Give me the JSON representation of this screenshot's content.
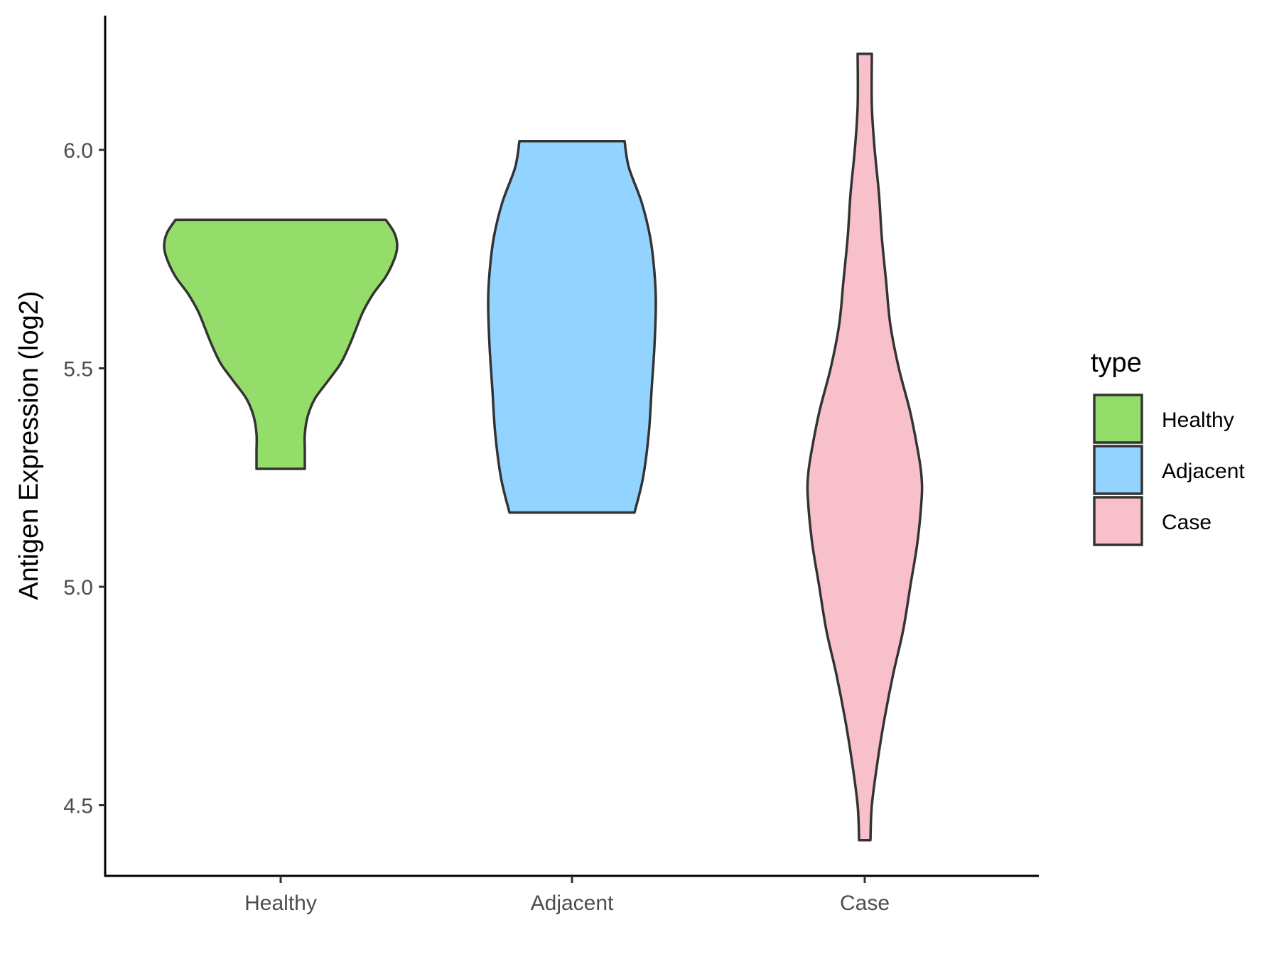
{
  "chart_data": {
    "type": "violin",
    "title": "",
    "xlabel": "",
    "ylabel": "Antigen Expression (log2)",
    "ylim": [
      4.35,
      6.32
    ],
    "yticks": [
      "4.5",
      "5.0",
      "5.5",
      "6.0"
    ],
    "categories": [
      "Healthy",
      "Adjacent",
      "Case"
    ],
    "grid": false,
    "legend": {
      "title": "type",
      "position": "right",
      "entries": [
        "Healthy",
        "Adjacent",
        "Case"
      ]
    },
    "series": [
      {
        "category": "Healthy",
        "color": "#94DD6A",
        "min": 5.27,
        "max": 5.84,
        "density_profile": [
          {
            "y": 5.27,
            "w": 0.17
          },
          {
            "y": 5.31,
            "w": 0.17
          },
          {
            "y": 5.35,
            "w": 0.17
          },
          {
            "y": 5.39,
            "w": 0.19
          },
          {
            "y": 5.43,
            "w": 0.24
          },
          {
            "y": 5.47,
            "w": 0.33
          },
          {
            "y": 5.51,
            "w": 0.42
          },
          {
            "y": 5.55,
            "w": 0.48
          },
          {
            "y": 5.59,
            "w": 0.53
          },
          {
            "y": 5.63,
            "w": 0.58
          },
          {
            "y": 5.67,
            "w": 0.65
          },
          {
            "y": 5.71,
            "w": 0.74
          },
          {
            "y": 5.75,
            "w": 0.8
          },
          {
            "y": 5.78,
            "w": 0.82
          },
          {
            "y": 5.81,
            "w": 0.8
          },
          {
            "y": 5.84,
            "w": 0.74
          }
        ]
      },
      {
        "category": "Adjacent",
        "color": "#93D3FF",
        "min": 5.17,
        "max": 6.02,
        "density_profile": [
          {
            "y": 5.17,
            "w": 0.44
          },
          {
            "y": 5.25,
            "w": 0.5
          },
          {
            "y": 5.35,
            "w": 0.54
          },
          {
            "y": 5.45,
            "w": 0.56
          },
          {
            "y": 5.55,
            "w": 0.58
          },
          {
            "y": 5.65,
            "w": 0.59
          },
          {
            "y": 5.72,
            "w": 0.58
          },
          {
            "y": 5.8,
            "w": 0.55
          },
          {
            "y": 5.88,
            "w": 0.49
          },
          {
            "y": 5.96,
            "w": 0.4
          },
          {
            "y": 6.02,
            "w": 0.37
          }
        ]
      },
      {
        "category": "Case",
        "color": "#F7C0CB",
        "min": 4.42,
        "max": 6.22,
        "density_profile": [
          {
            "y": 4.42,
            "w": 0.04
          },
          {
            "y": 4.5,
            "w": 0.05
          },
          {
            "y": 4.6,
            "w": 0.09
          },
          {
            "y": 4.7,
            "w": 0.14
          },
          {
            "y": 4.8,
            "w": 0.2
          },
          {
            "y": 4.9,
            "w": 0.27
          },
          {
            "y": 5.0,
            "w": 0.32
          },
          {
            "y": 5.1,
            "w": 0.37
          },
          {
            "y": 5.2,
            "w": 0.4
          },
          {
            "y": 5.25,
            "w": 0.4
          },
          {
            "y": 5.3,
            "w": 0.38
          },
          {
            "y": 5.4,
            "w": 0.32
          },
          {
            "y": 5.5,
            "w": 0.24
          },
          {
            "y": 5.6,
            "w": 0.18
          },
          {
            "y": 5.7,
            "w": 0.15
          },
          {
            "y": 5.8,
            "w": 0.12
          },
          {
            "y": 5.9,
            "w": 0.1
          },
          {
            "y": 6.0,
            "w": 0.07
          },
          {
            "y": 6.1,
            "w": 0.05
          },
          {
            "y": 6.22,
            "w": 0.05
          }
        ]
      }
    ]
  }
}
